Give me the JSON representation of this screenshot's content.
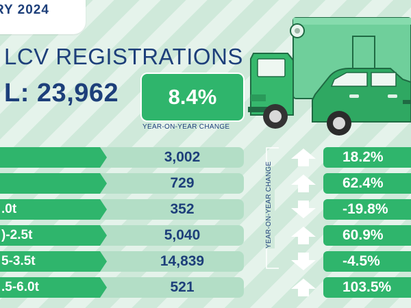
{
  "header": {
    "month_fragment": "RY 2024",
    "title_fragment": "LCV REGISTRATIONS",
    "total_fragment": "L: 23,962",
    "yoy_value": "8.4%",
    "yoy_caption": "YEAR-ON-YEAR CHANGE"
  },
  "side_label": "YEAR-ON-YEAR CHANGE",
  "rows": [
    {
      "label": "",
      "value": "3,002",
      "change": "18.2%",
      "direction": "up"
    },
    {
      "label": "",
      "value": "729",
      "change": "62.4%",
      "direction": "up"
    },
    {
      "label": ".0t",
      "value": "352",
      "change": "-19.8%",
      "direction": "down"
    },
    {
      "label": ")-2.5t",
      "value": "5,040",
      "change": "60.9%",
      "direction": "up"
    },
    {
      "label": "5-3.5t",
      "value": "14,839",
      "change": "-4.5%",
      "direction": "down"
    },
    {
      "label": ".5-6.0t",
      "value": "521",
      "change": "103.5%",
      "direction": "up"
    }
  ],
  "colors": {
    "background": "#cfe9da",
    "accent_green": "#2fb56c",
    "band_green": "#b3dec6",
    "navy": "#1d3f7a"
  },
  "icons": [
    "box-truck-illustration",
    "pickup-truck-illustration",
    "up-arrow-icon",
    "down-arrow-icon"
  ]
}
